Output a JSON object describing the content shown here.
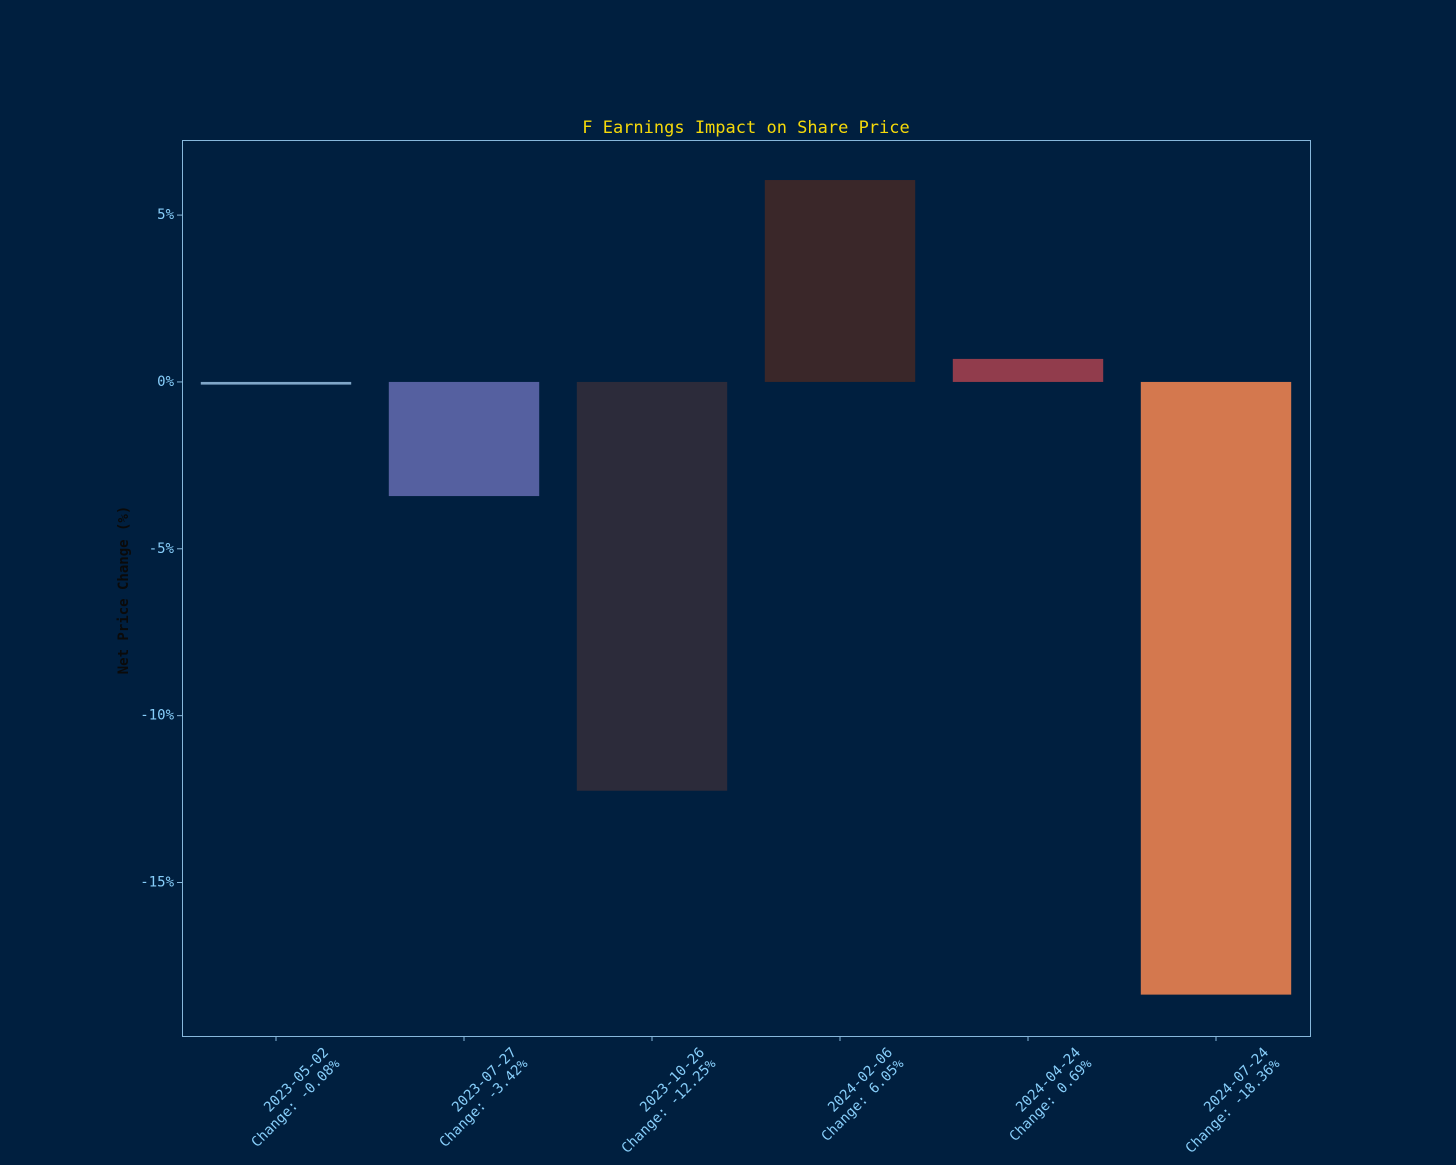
{
  "chart_data": {
    "type": "bar",
    "title": "F Earnings Impact on Share Price",
    "y_label": "Net Price Change (%)",
    "categories": [
      [
        "2023-05-02",
        "Change: -0.08%"
      ],
      [
        "2023-07-27",
        "Change: -3.42%"
      ],
      [
        "2023-10-26",
        "Change: -12.25%"
      ],
      [
        "2024-02-06",
        "Change: 6.05%"
      ],
      [
        "2024-04-24",
        "Change: 0.69%"
      ],
      [
        "2024-07-24",
        "Change: -18.36%"
      ]
    ],
    "values": [
      -0.08,
      -3.42,
      -12.25,
      6.05,
      0.69,
      -18.36
    ],
    "colors": [
      "#7fa6c8",
      "#5560a0",
      "#2c2b3a",
      "#3a2729",
      "#913c4c",
      "#d4784e"
    ],
    "ylim": [
      -19.6,
      7.25
    ],
    "yticks": [
      {
        "value": -15,
        "label": "-15%"
      },
      {
        "value": -10,
        "label": "-10%"
      },
      {
        "value": -5,
        "label": "-5%"
      },
      {
        "value": 0,
        "label": "0%"
      },
      {
        "value": 5,
        "label": "5%"
      }
    ],
    "grid": false
  }
}
